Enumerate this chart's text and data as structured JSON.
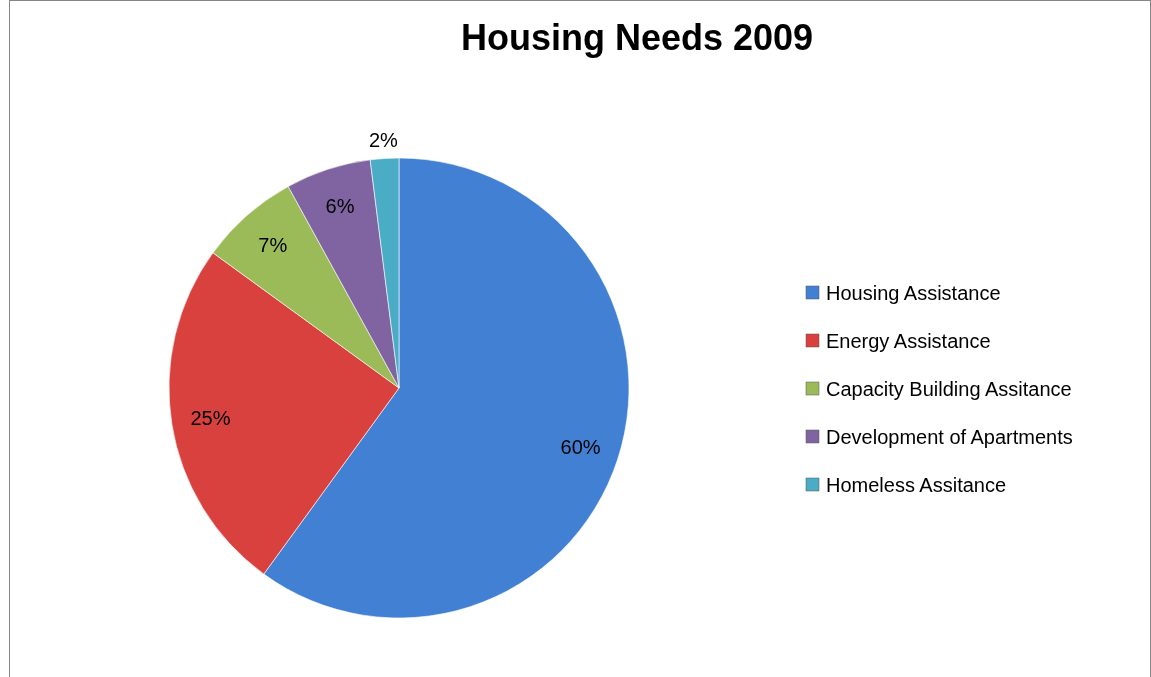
{
  "chart_data": {
    "type": "pie",
    "title": "Housing Needs 2009",
    "categories": [
      "Housing Assistance",
      "Energy Assistance",
      "Capacity Building Assitance",
      "Development of Apartments",
      "Homeless Assitance"
    ],
    "values": [
      60,
      25,
      7,
      6,
      2
    ],
    "colors": [
      "#4180d3",
      "#d9413f",
      "#9bbb59",
      "#8064a2",
      "#4bacc6"
    ],
    "value_labels": [
      "60%",
      "25%",
      "7%",
      "6%",
      "2%"
    ],
    "legend": "right"
  }
}
